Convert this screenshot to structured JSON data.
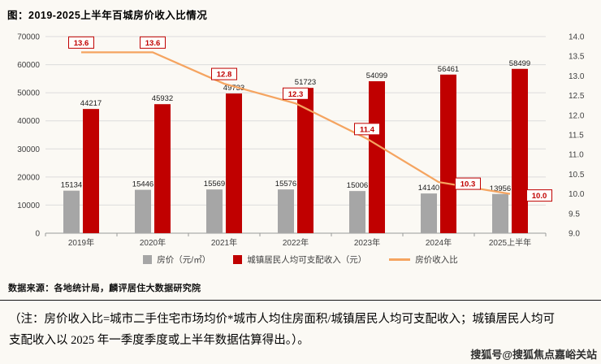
{
  "title": "图：2019-2025上半年百城房价收入比情况",
  "source": "数据来源：各地统计局，麟评居住大数据研究院",
  "note_lines": [
    "（注：房价收入比=城市二手住宅市场均价*城市人均住房面积/城镇居民人均可支配收入；城镇居民人均可",
    "支配收入以 2025 年一季度季度或上半年数据估算得出。）。"
  ],
  "watermark": "搜狐号@搜狐焦点嘉峪关站",
  "colors": {
    "background": "#fbf9f4",
    "house_price_bar": "#a6a6a6",
    "income_bar": "#c00000",
    "ratio_line": "#f5a460",
    "grid": "#dcdcdc",
    "axis": "#9a9a9a",
    "tick_text": "#404040",
    "ratio_label": "#c00000"
  },
  "chart_data": {
    "type": "bar+line",
    "title": "2019-2025上半年百城房价收入比情况",
    "categories": [
      "2019年",
      "2020年",
      "2021年",
      "2022年",
      "2023年",
      "2024年",
      "2025上半年"
    ],
    "series": [
      {
        "name": "房价（元/㎡）",
        "type": "bar",
        "axis": "left",
        "color": "#a6a6a6",
        "values": [
          15134,
          15446,
          15569,
          15576,
          15006,
          14140,
          13956
        ]
      },
      {
        "name": "城镇居民人均可支配收入（元）",
        "type": "bar",
        "axis": "left",
        "color": "#c00000",
        "values": [
          44217,
          45932,
          49733,
          51723,
          54099,
          56461,
          58499
        ]
      },
      {
        "name": "房价收入比",
        "type": "line",
        "axis": "right",
        "color": "#f5a460",
        "values": [
          13.6,
          13.6,
          12.8,
          12.3,
          11.4,
          10.3,
          10.0
        ]
      }
    ],
    "left_axis": {
      "min": 0,
      "max": 70000,
      "ticks": [
        "0",
        "10000",
        "20000",
        "30000",
        "40000",
        "50000",
        "60000",
        "70000"
      ]
    },
    "right_axis": {
      "min": 9,
      "max": 14,
      "ticks": [
        "9.0",
        "9.5",
        "10.0",
        "10.5",
        "11.0",
        "11.5",
        "12.0",
        "12.5",
        "13.0",
        "13.5",
        "14.0"
      ]
    },
    "grid": "horizontal",
    "legend_position": "bottom"
  }
}
